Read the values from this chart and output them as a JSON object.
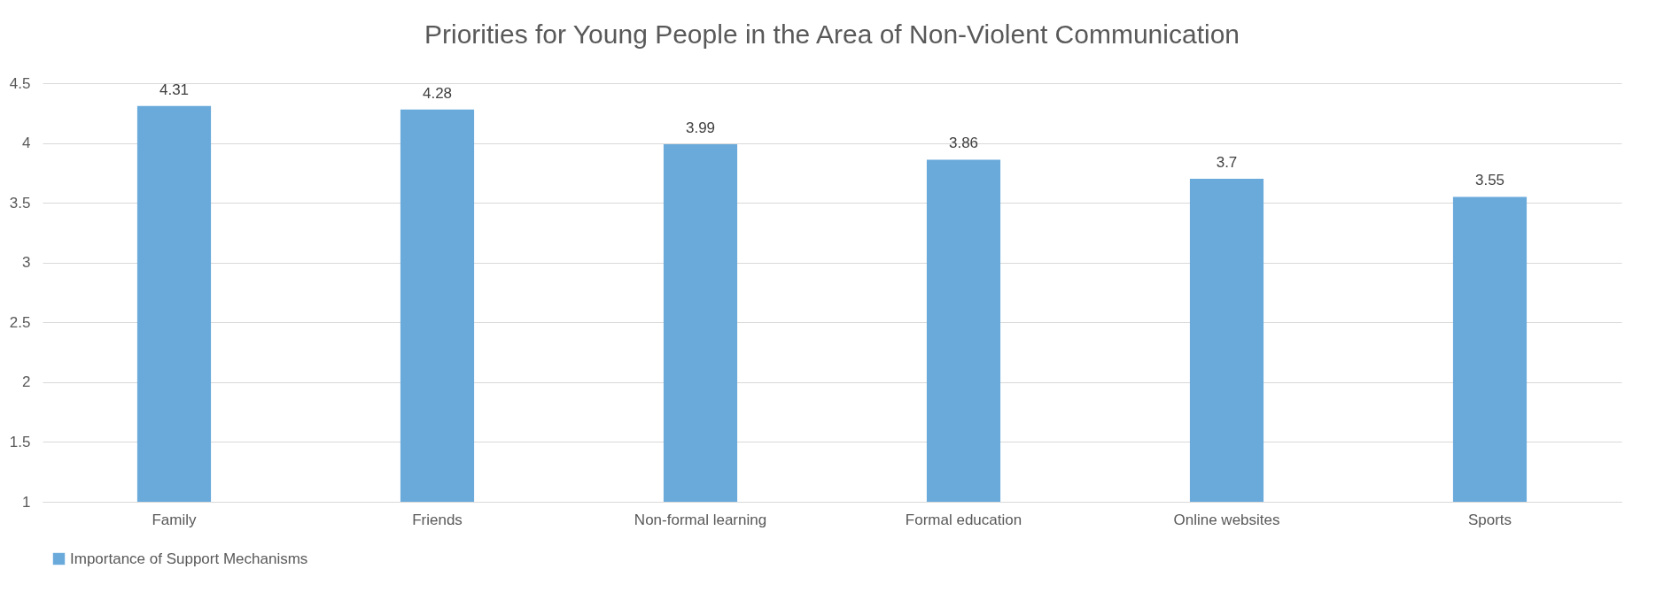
{
  "chart_data": {
    "type": "bar",
    "title": "Priorities for Young People in the Area of Non-Violent Communication",
    "categories": [
      "Family",
      "Friends",
      "Non-formal learning",
      "Formal education",
      "Online websites",
      "Sports"
    ],
    "series": [
      {
        "name": "Importance of Support Mechanisms",
        "color": "#6aaadb",
        "values": [
          4.31,
          4.28,
          3.99,
          3.86,
          3.7,
          3.55
        ]
      }
    ],
    "ylim": [
      1,
      4.5
    ],
    "yticks": [
      1,
      1.5,
      2,
      2.5,
      3,
      3.5,
      4,
      4.5
    ],
    "grid": "y",
    "legend": "bottom",
    "data_labels": true
  }
}
